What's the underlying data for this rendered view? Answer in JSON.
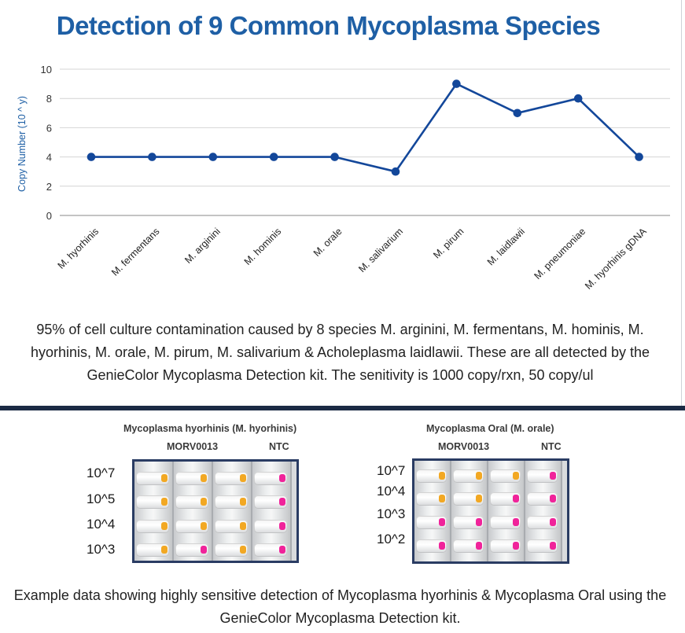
{
  "title": "Detection of 9 Common Mycoplasma Species",
  "chart_data": {
    "type": "line",
    "title": "Detection of 9 Common Mycoplasma Species",
    "ylabel": "Copy Number (10 ^ y)",
    "xlabel": "",
    "ylim": [
      0,
      10
    ],
    "yticks": [
      0,
      2,
      4,
      6,
      8,
      10
    ],
    "grid": true,
    "categories": [
      "M. hyorhinis",
      "M. fermentans",
      "M. arginini",
      "M. hominis",
      "M. orale",
      "M. salivarium",
      "M. pirum",
      "M. laidlawii",
      "M. pneumoniae",
      "M. hyorhinis gDNA"
    ],
    "series": [
      {
        "values": [
          4,
          4,
          4,
          4,
          4,
          3,
          9,
          7,
          8,
          4
        ],
        "color": "#13479a"
      }
    ]
  },
  "caption1": "95% of cell culture contamination caused by 8 species M. arginini, M. fermentans, M. hominis, M. hyorhinis, M. orale, M. pirum, M. salivarium & Acholeplasma laidlawii. These are all detected by the GenieColor Mycoplasma Detection kit. The senitivity is 1000 copy/rxn, 50 copy/ul",
  "panels": [
    {
      "title": "Mycoplasma hyorhinis (M. hyorhinis)",
      "sample_label": "MORV0013",
      "control_label": "NTC",
      "rows": [
        "10^7",
        "10^5",
        "10^4",
        "10^3"
      ]
    },
    {
      "title": "Mycoplasma Oral (M. orale)",
      "sample_label": "MORV0013",
      "control_label": "NTC",
      "rows": [
        "10^7",
        "10^4",
        "10^3",
        "10^2"
      ]
    }
  ],
  "colors": {
    "positive": "#f2a823",
    "negative": "#f0239a",
    "frame": "#2a3c63"
  },
  "caption2": "Example data showing highly sensitive detection of Mycoplasma hyorhinis & Mycoplasma Oral using the GenieColor Mycoplasma Detection kit."
}
